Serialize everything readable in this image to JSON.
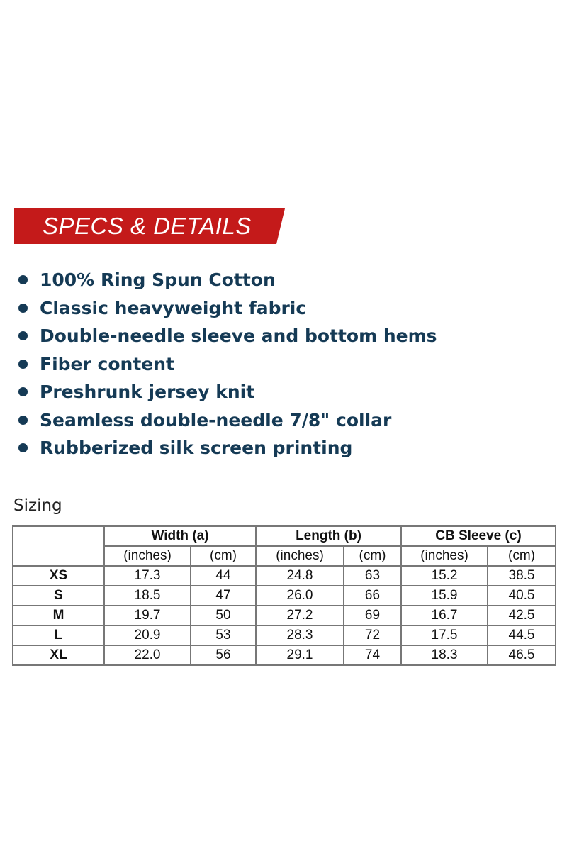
{
  "banner": {
    "title": "SPECS & DETAILS",
    "color": "#c41a1a"
  },
  "features": [
    "100% Ring Spun Cotton",
    "Classic heavyweight fabric",
    "Double-needle sleeve and bottom hems",
    "Fiber content",
    "Preshrunk jersey knit",
    "Seamless double-needle 7/8\" collar",
    "Rubberized silk screen printing"
  ],
  "sizing": {
    "title": "Sizing",
    "groups": [
      "Width (a)",
      "Length (b)",
      "CB Sleeve (c)"
    ],
    "units": [
      "(inches)",
      "(cm)",
      "(inches)",
      "(cm)",
      "(inches)",
      "(cm)"
    ],
    "rows": [
      [
        "XS",
        "17.3",
        "44",
        "24.8",
        "63",
        "15.2",
        "38.5"
      ],
      [
        "S",
        "18.5",
        "47",
        "26.0",
        "66",
        "15.9",
        "40.5"
      ],
      [
        "M",
        "19.7",
        "50",
        "27.2",
        "69",
        "16.7",
        "42.5"
      ],
      [
        "L",
        "20.9",
        "53",
        "28.3",
        "72",
        "17.5",
        "44.5"
      ],
      [
        "XL",
        "22.0",
        "56",
        "29.1",
        "74",
        "18.3",
        "46.5"
      ]
    ]
  }
}
